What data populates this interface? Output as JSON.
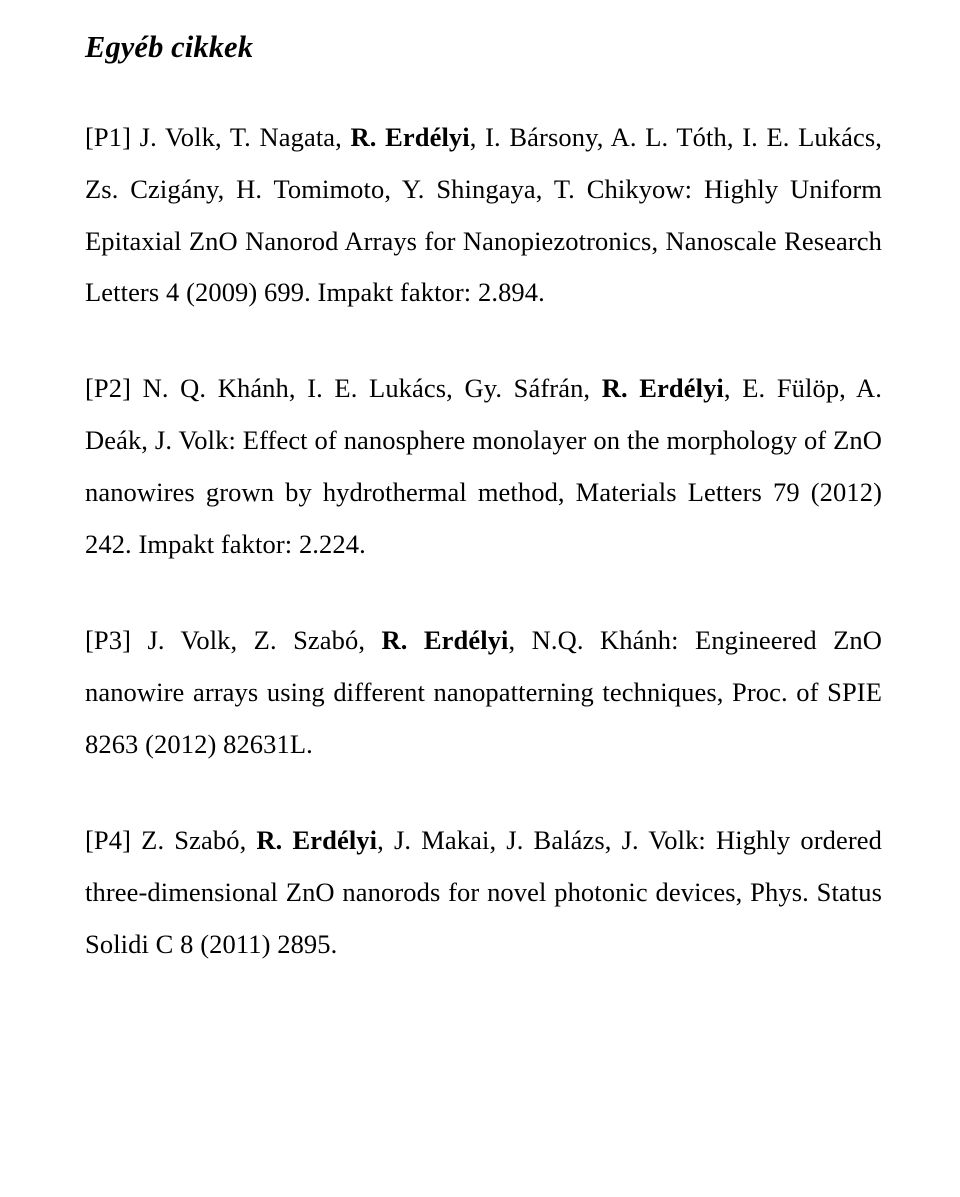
{
  "heading": "Egyéb cikkek",
  "entries": {
    "p1": {
      "pre": "[P1] J. Volk, T. Nagata, ",
      "em": "R. Erdélyi",
      "post": ", I. Bársony, A. L. Tóth, I. E. Lukács, Zs. Czigány, H. Tomimoto, Y. Shingaya, T. Chikyow: Highly Uniform Epitaxial ZnO Nanorod Arrays for Nanopiezotronics, Nanoscale Research Letters 4 (2009) 699. Impakt faktor: 2.894."
    },
    "p2": {
      "pre": "[P2] N. Q. Khánh, I. E. Lukács, Gy. Sáfrán, ",
      "em": "R. Erdélyi",
      "post": ", E. Fülöp, A. Deák, J. Volk: Effect of nanosphere monolayer on the morphology of ZnO nanowires grown by hydrothermal method, Materials Letters 79 (2012) 242. Impakt faktor: 2.224."
    },
    "p3": {
      "pre": "[P3] J. Volk, Z. Szabó, ",
      "em": "R. Erdélyi",
      "post": ", N.Q. Khánh: Engineered ZnO nanowire arrays using different nanopatterning techniques, Proc. of SPIE 8263 (2012) 82631L."
    },
    "p4": {
      "pre": "[P4] Z. Szabó, ",
      "em": "R. Erdélyi",
      "post": ", J. Makai, J. Balázs, J. Volk: Highly ordered three-dimensional ZnO nanorods for novel photonic devices, Phys. Status Solidi C 8 (2011) 2895."
    }
  }
}
